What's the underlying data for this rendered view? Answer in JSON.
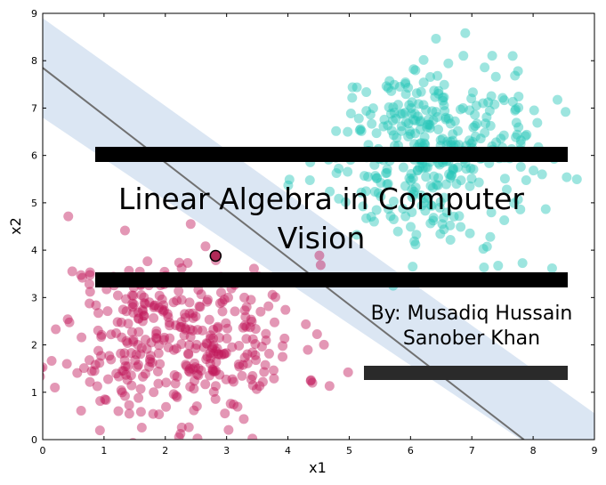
{
  "chart_data": {
    "type": "scatter",
    "title": "",
    "xlabel": "x1",
    "ylabel": "x2",
    "xlim": [
      0,
      9
    ],
    "ylim": [
      0,
      9
    ],
    "xticks": [
      "0",
      "1",
      "2",
      "3",
      "4",
      "5",
      "6",
      "7",
      "8",
      "9"
    ],
    "yticks": [
      "0",
      "1",
      "2",
      "3",
      "4",
      "5",
      "6",
      "7",
      "8",
      "9"
    ],
    "grid": false,
    "colors": {
      "class_a": "#c2185b",
      "class_b": "#26c6b8",
      "margin_band": "#dbe6f3",
      "boundary": "#707070",
      "highlight": "#b02a57"
    },
    "decision_boundary": {
      "x_intercept": 7.85,
      "y_intercept": 7.85
    },
    "margin_band": {
      "upper": {
        "x_intercept": 9.6,
        "y_intercept": 8.9
      },
      "lower": {
        "x_intercept": 7.8,
        "y_intercept": 6.8
      }
    },
    "highlight_point": {
      "x": 2.82,
      "y": 3.88
    },
    "clusters": [
      {
        "class": "class_a",
        "center": [
          2.2,
          2.1
        ],
        "spread": [
          1.0,
          0.9
        ],
        "count": 380,
        "seed": 11
      },
      {
        "class": "class_b",
        "center": [
          6.3,
          6.1
        ],
        "spread": [
          0.85,
          0.95
        ],
        "count": 380,
        "seed": 29
      }
    ],
    "series": []
  },
  "overlay": {
    "title_line1": "Linear Algebra in Computer",
    "title_line2": "Vision",
    "author_line1": "By: Musadiq Hussain",
    "author_line2": "Sanober Khan"
  }
}
